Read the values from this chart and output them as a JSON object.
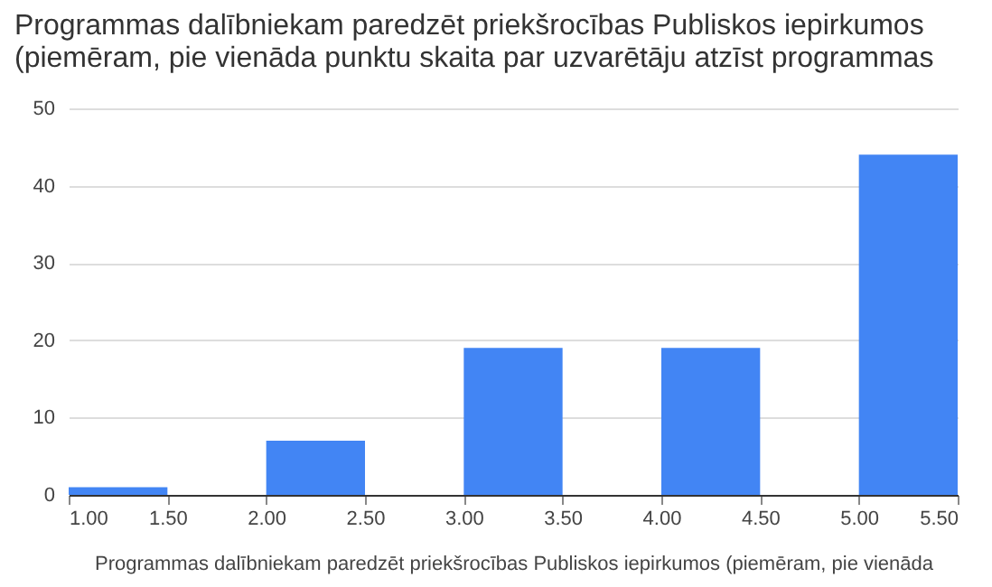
{
  "chart_data": {
    "type": "histogram",
    "title": "Programmas dalībniekam paredzēt priekšrocības Publiskos iepirkumos (piemēram, pie vienāda punktu skaita par uzvarētāju atzīst programmas",
    "xlabel": "Programmas dalībniekam paredzēt priekšrocības Publiskos iepirkumos (piemēram, pie vienāda",
    "bins": [
      1,
      1.5,
      2,
      2.5,
      3,
      3.5,
      4,
      4.5,
      5,
      5.5
    ],
    "values": [
      1,
      0,
      7,
      0,
      19,
      0,
      19,
      0,
      44
    ],
    "color": "#4285f4",
    "xlim": [
      1,
      5.5
    ],
    "xticks": [
      {
        "value": 1,
        "label": "1.00"
      },
      {
        "value": 1.5,
        "label": "1.50"
      },
      {
        "value": 2,
        "label": "2.00"
      },
      {
        "value": 2.5,
        "label": "2.50"
      },
      {
        "value": 3,
        "label": "3.00"
      },
      {
        "value": 3.5,
        "label": "3.50"
      },
      {
        "value": 4,
        "label": "4.00"
      },
      {
        "value": 4.5,
        "label": "4.50"
      },
      {
        "value": 5,
        "label": "5.00"
      },
      {
        "value": 5.5,
        "label": "5.50"
      }
    ],
    "ylim": [
      0,
      50
    ],
    "yticks": [
      0,
      10,
      20,
      30,
      40,
      50
    ],
    "grid": "y"
  }
}
